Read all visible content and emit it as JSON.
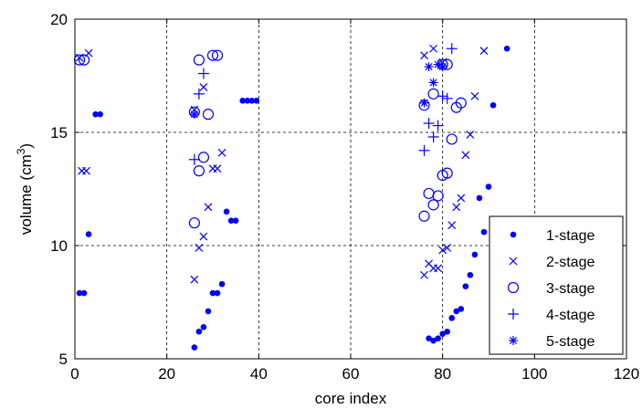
{
  "chart_data": {
    "type": "scatter",
    "title": "",
    "xlabel": "core index",
    "ylabel_main": "volume (cm",
    "ylabel_sup": "3",
    "ylabel_close": ")",
    "xlim": [
      0,
      120
    ],
    "ylim": [
      5,
      20
    ],
    "xticks": [
      0,
      20,
      40,
      60,
      80,
      100,
      120
    ],
    "yticks": [
      5,
      10,
      15,
      20
    ],
    "xtick_labels": [
      "0",
      "20",
      "40",
      "60",
      "80",
      "100",
      "120"
    ],
    "ytick_labels": [
      "5",
      "10",
      "15",
      "20"
    ],
    "grid": true,
    "legend_position": "bottom-right",
    "color": "#0000ff",
    "series": [
      {
        "name": "1-stage",
        "marker": "dot",
        "points": [
          [
            1,
            7.9
          ],
          [
            2,
            7.9
          ],
          [
            3,
            10.5
          ],
          [
            4.5,
            15.8
          ],
          [
            5.5,
            15.8
          ],
          [
            26,
            5.5
          ],
          [
            27,
            6.2
          ],
          [
            28,
            6.4
          ],
          [
            29,
            7.1
          ],
          [
            30,
            7.9
          ],
          [
            31,
            7.9
          ],
          [
            32,
            8.3
          ],
          [
            33,
            11.5
          ],
          [
            34,
            11.1
          ],
          [
            35,
            11.1
          ],
          [
            36.5,
            16.4
          ],
          [
            37.5,
            16.4
          ],
          [
            38.5,
            16.4
          ],
          [
            39.5,
            16.4
          ],
          [
            77,
            5.9
          ],
          [
            78,
            5.8
          ],
          [
            79,
            5.9
          ],
          [
            80,
            6.1
          ],
          [
            81,
            6.2
          ],
          [
            82,
            6.8
          ],
          [
            83,
            7.1
          ],
          [
            84,
            7.2
          ],
          [
            85,
            8.2
          ],
          [
            86,
            8.7
          ],
          [
            87,
            9.6
          ],
          [
            88,
            12.1
          ],
          [
            89,
            10.6
          ],
          [
            90,
            12.6
          ],
          [
            91,
            16.2
          ],
          [
            94,
            18.7
          ]
        ]
      },
      {
        "name": "2-stage",
        "marker": "x",
        "points": [
          [
            1,
            18.3
          ],
          [
            3,
            18.5
          ],
          [
            1.5,
            13.3
          ],
          [
            2.5,
            13.3
          ],
          [
            26,
            8.5
          ],
          [
            27,
            9.9
          ],
          [
            28,
            10.4
          ],
          [
            29,
            11.7
          ],
          [
            30,
            13.4
          ],
          [
            31,
            13.4
          ],
          [
            32,
            14.1
          ],
          [
            26,
            16.0
          ],
          [
            28,
            17.0
          ],
          [
            76,
            8.7
          ],
          [
            77,
            9.2
          ],
          [
            78,
            9.0
          ],
          [
            79,
            9.0
          ],
          [
            80,
            9.8
          ],
          [
            81,
            9.9
          ],
          [
            82,
            10.9
          ],
          [
            83,
            11.7
          ],
          [
            84,
            12.1
          ],
          [
            85,
            14.0
          ],
          [
            86,
            14.9
          ],
          [
            87,
            16.6
          ],
          [
            76,
            18.4
          ],
          [
            78,
            18.7
          ],
          [
            80,
            18.1
          ],
          [
            89,
            18.6
          ]
        ]
      },
      {
        "name": "3-stage",
        "marker": "circle",
        "points": [
          [
            1,
            18.2
          ],
          [
            2,
            18.2
          ],
          [
            26,
            11.0
          ],
          [
            27,
            13.3
          ],
          [
            28,
            13.9
          ],
          [
            26,
            15.9
          ],
          [
            29,
            15.8
          ],
          [
            27,
            18.2
          ],
          [
            30,
            18.4
          ],
          [
            31,
            18.4
          ],
          [
            76,
            11.3
          ],
          [
            77,
            12.3
          ],
          [
            78,
            11.8
          ],
          [
            79,
            12.2
          ],
          [
            80,
            13.1
          ],
          [
            81,
            13.2
          ],
          [
            82,
            14.7
          ],
          [
            76,
            16.2
          ],
          [
            78,
            16.7
          ],
          [
            83,
            16.1
          ],
          [
            84,
            16.3
          ],
          [
            80,
            18.0
          ],
          [
            81,
            18.0
          ]
        ]
      },
      {
        "name": "4-stage",
        "marker": "plus",
        "points": [
          [
            26,
            13.8
          ],
          [
            27,
            16.7
          ],
          [
            28,
            17.6
          ],
          [
            76,
            14.2
          ],
          [
            77,
            15.4
          ],
          [
            78,
            14.8
          ],
          [
            79,
            15.3
          ],
          [
            80,
            16.6
          ],
          [
            81,
            16.5
          ],
          [
            82,
            18.7
          ]
        ]
      },
      {
        "name": "5-stage",
        "marker": "asterisk",
        "points": [
          [
            26,
            15.8
          ],
          [
            76,
            16.3
          ],
          [
            77,
            17.9
          ],
          [
            78,
            17.2
          ],
          [
            79,
            18.0
          ],
          [
            80,
            17.9
          ]
        ]
      }
    ]
  }
}
